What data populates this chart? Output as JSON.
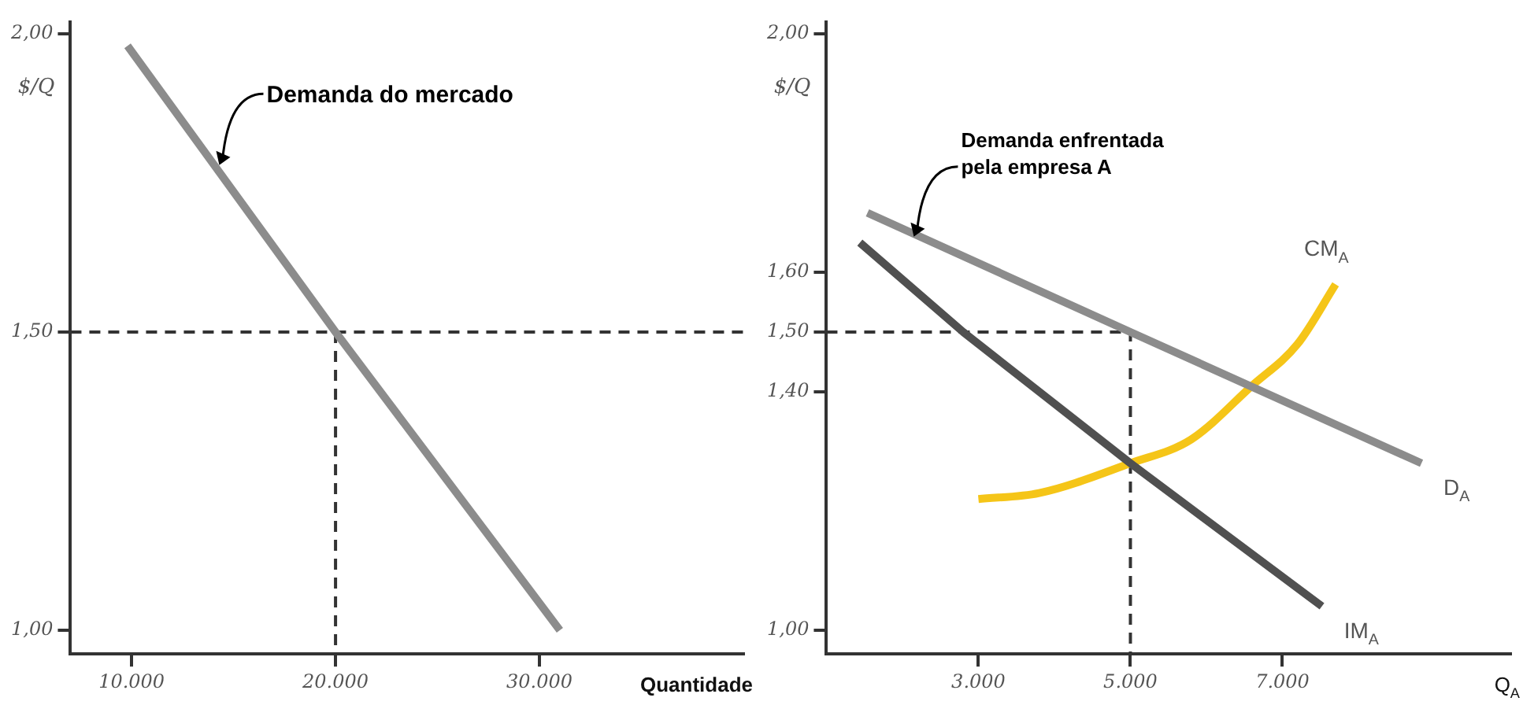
{
  "chart_data": [
    {
      "type": "line",
      "xlabel": "Quantidade",
      "ylabel": "$/Q",
      "xlim": [
        7000,
        40000
      ],
      "ylim": [
        0.96,
        2.02
      ],
      "xticks": [
        {
          "value": 10000,
          "label": "10.000"
        },
        {
          "value": 20000,
          "label": "20.000"
        },
        {
          "value": 30000,
          "label": "30.000"
        }
      ],
      "yticks": [
        {
          "value": 1,
          "label": "1,00"
        },
        {
          "value": 1.5,
          "label": "1,50"
        },
        {
          "value": 2,
          "label": "2,00"
        }
      ],
      "grid": false,
      "legend": false,
      "marker": "none",
      "series": [
        {
          "color": "#8c8c8c",
          "x": [
            9800,
            20000,
            31000
          ],
          "values": [
            1.98,
            1.5,
            1.0
          ]
        },
        {
          "color": "#333333",
          "line_style": "dashed",
          "x": [
            20000,
            20000
          ],
          "values": [
            1.5,
            0.96
          ]
        }
      ],
      "ref_lines": [
        {
          "axis": "y",
          "value": 1.5,
          "color": "#333333",
          "line_style": "dashed"
        }
      ],
      "annotations": [
        {
          "text": "Demanda do mercado",
          "x": 14300,
          "y": 1.78
        }
      ]
    },
    {
      "type": "line",
      "xlabel": "Q$_{A}$",
      "ylabel": "$/Q",
      "xlim": [
        1000,
        10000
      ],
      "ylim": [
        0.96,
        2.02
      ],
      "xticks": [
        {
          "value": 3000,
          "label": "3.000"
        },
        {
          "value": 5000,
          "label": "5.000"
        },
        {
          "value": 7000,
          "label": "7.000"
        }
      ],
      "yticks": [
        {
          "value": 1,
          "label": "1,00"
        },
        {
          "value": 1.4,
          "label": "1,40"
        },
        {
          "value": 1.5,
          "label": "1,50"
        },
        {
          "value": 1.6,
          "label": "1,60"
        },
        {
          "value": 2,
          "label": "2,00"
        }
      ],
      "grid": false,
      "legend": false,
      "marker": "none",
      "series": [
        {
          "name": "D$_{A}$",
          "color": "#8c8c8c",
          "x": [
            1540,
            5000,
            8830
          ],
          "values": [
            1.7,
            1.5,
            1.28
          ]
        },
        {
          "name": "IM$_{A}$",
          "color": "#505050",
          "x": [
            1440,
            2800,
            5000,
            7520
          ],
          "values": [
            1.65,
            1.5,
            1.28,
            1.04
          ]
        },
        {
          "name": "CM$_{A}$",
          "color": "#f5c518",
          "x": [
            3000,
            3800,
            5000,
            5800,
            6600,
            7200,
            7700
          ],
          "values": [
            1.22,
            1.23,
            1.28,
            1.32,
            1.41,
            1.48,
            1.58
          ]
        },
        {
          "color": "#333333",
          "line_style": "dashed",
          "x": [
            1000,
            5000,
            5000
          ],
          "values": [
            1.5,
            1.5,
            0.96
          ]
        }
      ],
      "annotations": [
        {
          "text": "Demanda enfrentada pela empresa A",
          "x": 2150,
          "y": 1.66
        }
      ]
    }
  ]
}
